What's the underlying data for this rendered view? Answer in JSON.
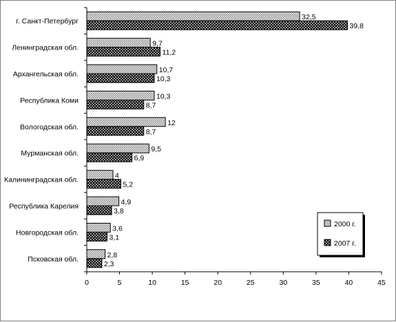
{
  "chart_data": {
    "type": "bar",
    "orientation": "horizontal",
    "categories": [
      "г. Санкт-Петербург",
      "Ленинградская обл.",
      "Архангельская обл.",
      "Республика Коми",
      "Вологодская обл.",
      "Мурманская обл.",
      "Калининградская обл.",
      "Республика Карелия",
      "Новгородская обл.",
      "Псковская обл."
    ],
    "series": [
      {
        "name": "2000 г.",
        "values": [
          32.5,
          9.7,
          10.7,
          10.3,
          12,
          9.5,
          4,
          4.9,
          3.6,
          2.8
        ],
        "labels": [
          "32,5",
          "9,7",
          "10,7",
          "10,3",
          "12",
          "9,5",
          "4",
          "4,9",
          "3,6",
          "2,8"
        ],
        "pattern": "fine-hatch",
        "color": "#c8c8c8"
      },
      {
        "name": "2007 г.",
        "values": [
          39.8,
          11.2,
          10.3,
          8.7,
          8.7,
          6.9,
          5.2,
          3.8,
          3.1,
          2.3
        ],
        "labels": [
          "39,8",
          "11,2",
          "10,3",
          "8,7",
          "8,7",
          "6,9",
          "5,2",
          "3,8",
          "3,1",
          "2,3"
        ],
        "pattern": "dotted-dark",
        "color": "#000000"
      }
    ],
    "xlim": [
      0,
      45
    ],
    "xticks": [
      0,
      5,
      10,
      15,
      20,
      25,
      30,
      35,
      40,
      45
    ],
    "xlabel": "",
    "ylabel": "",
    "title": "",
    "grid": false,
    "legend_position": "bottom-right"
  }
}
